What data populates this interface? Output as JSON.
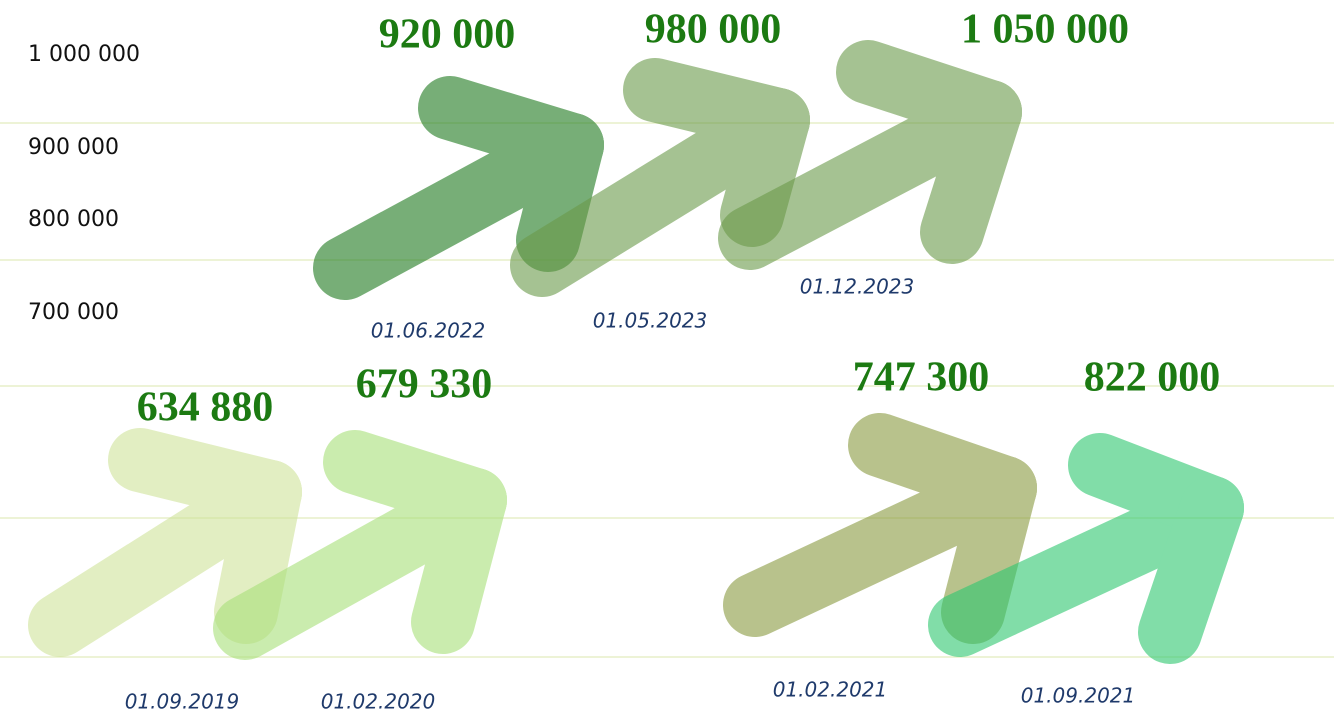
{
  "axis_labels": [
    "1 000 000",
    "900 000",
    "800 000",
    "700 000"
  ],
  "milestones": [
    {
      "value": "920 000",
      "date": "01.06.2022"
    },
    {
      "value": "980 000",
      "date": "01.05.2023"
    },
    {
      "value": "1 050 000",
      "date": "01.12.2023"
    },
    {
      "value": "634 880",
      "date": "01.09.2019"
    },
    {
      "value": "679 330",
      "date": "01.02.2020"
    },
    {
      "value": "747 300",
      "date": "01.02.2021"
    },
    {
      "value": "822 000",
      "date": "01.09.2021"
    }
  ]
}
